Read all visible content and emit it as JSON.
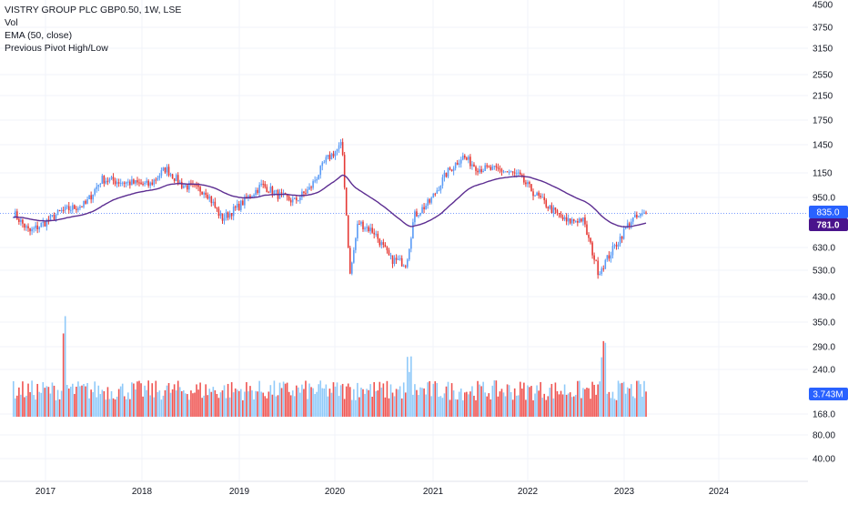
{
  "legend": {
    "title": "VISTRY GROUP PLC GBP0.50, 1W, LSE",
    "vol": "Vol",
    "ema": "EMA (50, close)",
    "pivot": "Previous Pivot High/Low"
  },
  "colors": {
    "up": "#5b9cf6",
    "down": "#e53935",
    "ema": "#5c2d91",
    "vol_up": "#90caf9",
    "vol_down": "#ef5350",
    "price_tag": "#2962ff",
    "ema_tag": "#4a148c",
    "vol_tag": "#2962ff",
    "grid": "#f0f3fa",
    "axis_text": "#131722"
  },
  "price_axis_ticks": [
    "4500",
    "3750",
    "3150",
    "2550",
    "2150",
    "1750",
    "1450",
    "1150",
    "950.0",
    "630.0",
    "530.0",
    "430.0",
    "350.0",
    "290.0",
    "240.0",
    "168.0",
    "80.00",
    "40.00"
  ],
  "x_axis_ticks": [
    "2017",
    "2018",
    "2019",
    "2020",
    "2021",
    "2022",
    "2023",
    "2024"
  ],
  "tags": {
    "price": "835.0",
    "ema": "781.0",
    "volume": "3.743M"
  },
  "chart_data": {
    "type": "candlestick",
    "title": "VISTRY GROUP PLC GBP0.50, 1W, LSE",
    "y_scale": "log",
    "price_range": [
      400,
      4500
    ],
    "series": [
      {
        "name": "Vol"
      },
      {
        "name": "EMA (50, close)"
      },
      {
        "name": "Previous Pivot High/Low"
      }
    ],
    "price_close_anchors": [
      {
        "date": "2016-09",
        "close": 840
      },
      {
        "date": "2016-11",
        "close": 720
      },
      {
        "date": "2017-01",
        "close": 780
      },
      {
        "date": "2017-03",
        "close": 850
      },
      {
        "date": "2017-06",
        "close": 900
      },
      {
        "date": "2017-08",
        "close": 1100
      },
      {
        "date": "2017-10",
        "close": 1080
      },
      {
        "date": "2018-02",
        "close": 1050
      },
      {
        "date": "2018-04",
        "close": 1200
      },
      {
        "date": "2018-06",
        "close": 1050
      },
      {
        "date": "2018-09",
        "close": 1000
      },
      {
        "date": "2018-11",
        "close": 800
      },
      {
        "date": "2019-01",
        "close": 880
      },
      {
        "date": "2019-04",
        "close": 1050
      },
      {
        "date": "2019-06",
        "close": 970
      },
      {
        "date": "2019-08",
        "close": 920
      },
      {
        "date": "2019-10",
        "close": 1020
      },
      {
        "date": "2019-12",
        "close": 1280
      },
      {
        "date": "2020-02",
        "close": 1450
      },
      {
        "date": "2020-03",
        "close": 510
      },
      {
        "date": "2020-04",
        "close": 780
      },
      {
        "date": "2020-06",
        "close": 720
      },
      {
        "date": "2020-08",
        "close": 580
      },
      {
        "date": "2020-10",
        "close": 560
      },
      {
        "date": "2020-11",
        "close": 820
      },
      {
        "date": "2021-01",
        "close": 920
      },
      {
        "date": "2021-03",
        "close": 1150
      },
      {
        "date": "2021-05",
        "close": 1320
      },
      {
        "date": "2021-07",
        "close": 1200
      },
      {
        "date": "2021-10",
        "close": 1180
      },
      {
        "date": "2021-12",
        "close": 1130
      },
      {
        "date": "2022-02",
        "close": 980
      },
      {
        "date": "2022-04",
        "close": 870
      },
      {
        "date": "2022-06",
        "close": 780
      },
      {
        "date": "2022-08",
        "close": 800
      },
      {
        "date": "2022-10",
        "close": 520
      },
      {
        "date": "2022-12",
        "close": 640
      },
      {
        "date": "2023-02",
        "close": 790
      },
      {
        "date": "2023-04",
        "close": 835
      }
    ],
    "last_price": 835.0,
    "ema_last": 781.0,
    "volume_last": "3.743M",
    "grid": true
  }
}
